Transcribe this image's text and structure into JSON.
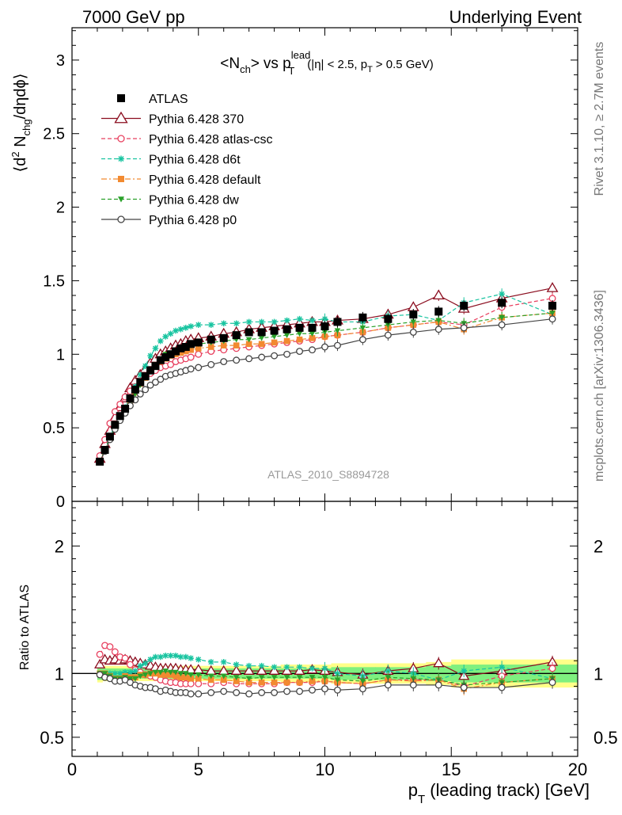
{
  "header": {
    "left": "7000 GeV pp",
    "right": "Underlying Event"
  },
  "side_labels": {
    "rivet": "Rivet 3.1.10, ≥ 2.7M events",
    "mcplots": "mcplots.cern.ch [arXiv:1306.3436]"
  },
  "colors": {
    "ATLAS": "#000000",
    "Pythia 6.428 370": "#8b0d1f",
    "Pythia 6.428 atlas-csc": "#e8405f",
    "Pythia 6.428 d6t": "#18c4a0",
    "Pythia 6.428 default": "#f28a30",
    "Pythia 6.428 dw": "#2aa12a",
    "Pythia 6.428 p0": "#444444",
    "band_inner": "#7ff07f",
    "band_outer": "#ffff88"
  },
  "chart_data": [
    {
      "type": "line",
      "title_parts": {
        "lt": "<",
        "n": "N",
        "ch": "ch",
        "gt": ">",
        "vs": "vs p",
        "lead": "lead",
        "t": "T",
        "cut1": "(|η| < 2.5, p",
        "cut_t": "T",
        "cut2": "> 0.5 GeV)"
      },
      "ylabel_parts": {
        "open": "⟨d",
        "two": "2",
        "n": " N",
        "chg": "chg",
        "rest": "/dηdϕ⟩"
      },
      "ylim": [
        0,
        3.22
      ],
      "xlim": [
        0,
        20
      ],
      "yticks": [
        "0",
        "0.5",
        "1",
        "1.5",
        "2",
        "2.5",
        "3"
      ],
      "ytick_values": [
        0,
        0.5,
        1,
        1.5,
        2,
        2.5,
        3
      ],
      "annotation": "ATLAS_2010_S8894728",
      "legend_position": "top-left",
      "x": [
        1.1,
        1.3,
        1.5,
        1.7,
        1.9,
        2.1,
        2.3,
        2.5,
        2.7,
        2.9,
        3.1,
        3.3,
        3.5,
        3.7,
        3.9,
        4.1,
        4.3,
        4.5,
        4.7,
        5.0,
        5.5,
        6.0,
        6.5,
        7.0,
        7.5,
        8.0,
        8.5,
        9.0,
        9.5,
        10.0,
        10.5,
        11.5,
        12.5,
        13.5,
        14.5,
        15.5,
        17.0,
        19.0
      ],
      "series": [
        {
          "name": "ATLAS",
          "marker": "square-filled",
          "line": "none",
          "values": [
            0.27,
            0.35,
            0.44,
            0.52,
            0.58,
            0.63,
            0.7,
            0.76,
            0.81,
            0.85,
            0.89,
            0.92,
            0.96,
            0.98,
            1.0,
            1.02,
            1.04,
            1.05,
            1.07,
            1.08,
            1.1,
            1.11,
            1.13,
            1.15,
            1.15,
            1.16,
            1.17,
            1.18,
            1.18,
            1.19,
            1.22,
            1.25,
            1.24,
            1.27,
            1.29,
            1.33,
            1.35,
            1.33
          ]
        },
        {
          "name": "Pythia 6.428 370",
          "marker": "triangle-open",
          "line": "solid",
          "values": [
            0.29,
            0.39,
            0.48,
            0.57,
            0.64,
            0.7,
            0.77,
            0.82,
            0.86,
            0.9,
            0.94,
            0.97,
            1.0,
            1.02,
            1.04,
            1.06,
            1.07,
            1.09,
            1.1,
            1.11,
            1.12,
            1.14,
            1.15,
            1.17,
            1.18,
            1.19,
            1.2,
            1.21,
            1.22,
            1.22,
            1.23,
            1.24,
            1.27,
            1.32,
            1.4,
            1.31,
            1.38,
            1.45
          ]
        },
        {
          "name": "Pythia 6.428 atlas-csc",
          "marker": "circle-open",
          "line": "dashed",
          "values": [
            0.31,
            0.42,
            0.53,
            0.61,
            0.66,
            0.71,
            0.75,
            0.78,
            0.82,
            0.85,
            0.87,
            0.89,
            0.91,
            0.92,
            0.93,
            0.95,
            0.96,
            0.97,
            0.98,
            1.0,
            1.02,
            1.03,
            1.04,
            1.05,
            1.06,
            1.07,
            1.08,
            1.09,
            1.1,
            1.12,
            1.13,
            1.15,
            1.18,
            1.2,
            1.22,
            1.2,
            1.32,
            1.38
          ]
        },
        {
          "name": "Pythia 6.428 d6t",
          "marker": "star",
          "line": "dashed",
          "values": [
            0.27,
            0.35,
            0.44,
            0.52,
            0.58,
            0.64,
            0.71,
            0.78,
            0.86,
            0.92,
            0.99,
            1.04,
            1.09,
            1.12,
            1.14,
            1.16,
            1.17,
            1.18,
            1.19,
            1.2,
            1.2,
            1.21,
            1.21,
            1.22,
            1.22,
            1.22,
            1.23,
            1.24,
            1.23,
            1.24,
            1.22,
            1.22,
            1.26,
            1.27,
            1.23,
            1.35,
            1.41,
            1.27
          ]
        },
        {
          "name": "Pythia 6.428 default",
          "marker": "square-filled",
          "line": "dashdot",
          "values": [
            0.27,
            0.35,
            0.43,
            0.5,
            0.56,
            0.62,
            0.68,
            0.74,
            0.8,
            0.84,
            0.89,
            0.92,
            0.95,
            0.97,
            0.99,
            1.0,
            1.01,
            1.02,
            1.03,
            1.04,
            1.05,
            1.06,
            1.06,
            1.07,
            1.07,
            1.08,
            1.09,
            1.1,
            1.11,
            1.12,
            1.13,
            1.15,
            1.18,
            1.2,
            1.22,
            1.17,
            1.25,
            1.28
          ]
        },
        {
          "name": "Pythia 6.428 dw",
          "marker": "triangle-down-filled",
          "line": "dashed",
          "values": [
            0.27,
            0.35,
            0.43,
            0.5,
            0.56,
            0.61,
            0.67,
            0.73,
            0.79,
            0.84,
            0.89,
            0.93,
            0.97,
            1.0,
            1.01,
            1.03,
            1.04,
            1.05,
            1.06,
            1.07,
            1.08,
            1.09,
            1.1,
            1.1,
            1.11,
            1.12,
            1.13,
            1.14,
            1.14,
            1.15,
            1.16,
            1.18,
            1.2,
            1.22,
            1.23,
            1.21,
            1.25,
            1.28
          ]
        },
        {
          "name": "Pythia 6.428 p0",
          "marker": "circle-open",
          "line": "solid",
          "values": [
            0.27,
            0.34,
            0.42,
            0.49,
            0.55,
            0.6,
            0.65,
            0.69,
            0.73,
            0.76,
            0.79,
            0.81,
            0.83,
            0.85,
            0.86,
            0.87,
            0.88,
            0.89,
            0.9,
            0.91,
            0.93,
            0.95,
            0.96,
            0.97,
            0.98,
            0.99,
            1.0,
            1.02,
            1.03,
            1.05,
            1.06,
            1.1,
            1.13,
            1.15,
            1.17,
            1.18,
            1.2,
            1.24
          ]
        }
      ]
    },
    {
      "type": "line",
      "ylabel": "Ratio to ATLAS",
      "xlabel_parts": {
        "p": "p",
        "t": "T",
        "rest": " (leading track) [GeV]"
      },
      "ylim": [
        0.35,
        2.35
      ],
      "xlim": [
        0,
        20
      ],
      "yticks": [
        "0.5",
        "1",
        "2"
      ],
      "ytick_values": [
        0.5,
        1,
        2
      ],
      "xticks": [
        "0",
        "5",
        "10",
        "15",
        "20"
      ],
      "xtick_values": [
        0,
        5,
        10,
        15,
        20
      ],
      "reference_line": 1.0,
      "x": [
        1.1,
        1.3,
        1.5,
        1.7,
        1.9,
        2.1,
        2.3,
        2.5,
        2.7,
        2.9,
        3.1,
        3.3,
        3.5,
        3.7,
        3.9,
        4.1,
        4.3,
        4.5,
        4.7,
        5.0,
        5.5,
        6.0,
        6.5,
        7.0,
        7.5,
        8.0,
        8.5,
        9.0,
        9.5,
        10.0,
        10.5,
        11.5,
        12.5,
        13.5,
        14.5,
        15.5,
        17.0,
        19.0
      ],
      "band_inner_halfwidth": [
        0.05,
        0.04,
        0.04,
        0.04,
        0.04,
        0.04,
        0.04,
        0.04,
        0.04,
        0.04,
        0.04,
        0.04,
        0.04,
        0.04,
        0.04,
        0.04,
        0.04,
        0.04,
        0.04,
        0.04,
        0.04,
        0.04,
        0.04,
        0.04,
        0.04,
        0.04,
        0.04,
        0.04,
        0.04,
        0.04,
        0.05,
        0.05,
        0.05,
        0.05,
        0.06,
        0.07,
        0.07,
        0.07
      ],
      "band_outer_halfwidth": [
        0.07,
        0.06,
        0.06,
        0.06,
        0.06,
        0.06,
        0.06,
        0.06,
        0.06,
        0.06,
        0.06,
        0.06,
        0.06,
        0.06,
        0.06,
        0.06,
        0.06,
        0.06,
        0.06,
        0.06,
        0.06,
        0.06,
        0.06,
        0.06,
        0.06,
        0.06,
        0.07,
        0.07,
        0.07,
        0.07,
        0.08,
        0.08,
        0.08,
        0.08,
        0.09,
        0.11,
        0.11,
        0.11
      ],
      "series": [
        {
          "name": "Pythia 6.428 370",
          "values": [
            1.07,
            1.11,
            1.1,
            1.11,
            1.1,
            1.11,
            1.1,
            1.09,
            1.08,
            1.07,
            1.06,
            1.05,
            1.04,
            1.04,
            1.04,
            1.04,
            1.03,
            1.03,
            1.03,
            1.03,
            1.02,
            1.02,
            1.02,
            1.02,
            1.02,
            1.02,
            1.02,
            1.02,
            1.03,
            1.02,
            1.01,
            0.99,
            1.02,
            1.04,
            1.08,
            0.98,
            1.02,
            1.09
          ]
        },
        {
          "name": "Pythia 6.428 atlas-csc",
          "values": [
            1.15,
            1.22,
            1.21,
            1.17,
            1.13,
            1.12,
            1.07,
            1.03,
            1.01,
            0.99,
            0.98,
            0.97,
            0.95,
            0.94,
            0.93,
            0.93,
            0.92,
            0.92,
            0.92,
            0.92,
            0.92,
            0.93,
            0.92,
            0.92,
            0.92,
            0.92,
            0.93,
            0.93,
            0.93,
            0.94,
            0.93,
            0.92,
            0.95,
            0.95,
            0.95,
            0.9,
            0.98,
            1.04
          ]
        },
        {
          "name": "Pythia 6.428 d6t",
          "values": [
            1.0,
            1.0,
            1.0,
            1.0,
            1.0,
            1.01,
            1.01,
            1.02,
            1.06,
            1.08,
            1.11,
            1.13,
            1.13,
            1.14,
            1.14,
            1.14,
            1.13,
            1.13,
            1.12,
            1.11,
            1.09,
            1.09,
            1.07,
            1.06,
            1.06,
            1.05,
            1.05,
            1.05,
            1.04,
            1.04,
            1.0,
            0.98,
            1.02,
            1.0,
            0.95,
            1.02,
            1.05,
            0.96
          ]
        },
        {
          "name": "Pythia 6.428 default",
          "values": [
            1.0,
            1.0,
            0.98,
            0.96,
            0.96,
            0.98,
            0.97,
            0.97,
            0.99,
            0.99,
            1.0,
            1.0,
            0.99,
            0.99,
            0.99,
            0.98,
            0.97,
            0.97,
            0.96,
            0.96,
            0.95,
            0.95,
            0.94,
            0.93,
            0.93,
            0.93,
            0.93,
            0.93,
            0.94,
            0.94,
            0.93,
            0.92,
            0.95,
            0.94,
            0.95,
            0.88,
            0.93,
            0.96
          ]
        },
        {
          "name": "Pythia 6.428 dw",
          "values": [
            1.0,
            1.0,
            0.98,
            0.96,
            0.96,
            0.97,
            0.96,
            0.96,
            0.98,
            0.99,
            1.0,
            1.01,
            1.01,
            1.02,
            1.01,
            1.01,
            1.0,
            1.0,
            0.99,
            0.99,
            0.98,
            0.98,
            0.97,
            0.96,
            0.97,
            0.97,
            0.97,
            0.97,
            0.97,
            0.97,
            0.95,
            0.94,
            0.97,
            0.96,
            0.95,
            0.91,
            0.93,
            0.96
          ]
        },
        {
          "name": "Pythia 6.428 p0",
          "values": [
            0.99,
            0.97,
            0.96,
            0.94,
            0.94,
            0.95,
            0.93,
            0.91,
            0.9,
            0.89,
            0.89,
            0.88,
            0.86,
            0.87,
            0.86,
            0.85,
            0.85,
            0.85,
            0.84,
            0.84,
            0.85,
            0.86,
            0.85,
            0.84,
            0.85,
            0.85,
            0.86,
            0.86,
            0.87,
            0.88,
            0.87,
            0.88,
            0.91,
            0.91,
            0.91,
            0.89,
            0.89,
            0.93
          ]
        }
      ]
    }
  ]
}
